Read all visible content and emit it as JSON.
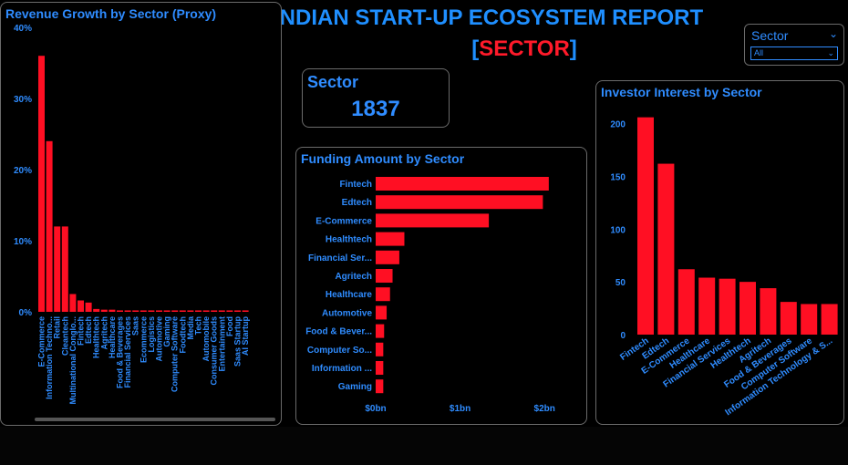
{
  "header": {
    "title": "INDIAN START-UP ECOSYSTEM REPORT",
    "subtitle_open": "[",
    "subtitle_text": "SECTOR",
    "subtitle_close": "]"
  },
  "kpi": {
    "label": "Sector",
    "value": "1837"
  },
  "slicer": {
    "label": "Sector",
    "selected": "All"
  },
  "colors": {
    "bar": "#ff0f23",
    "text": "#2f8cff",
    "border": "#6b6b6b",
    "background": "#000000"
  },
  "chart_data": [
    {
      "type": "bar",
      "title": "Revenue Growth by Sector (Proxy)",
      "ylabel": "",
      "ylim": [
        0,
        40
      ],
      "yticks": [
        "0%",
        "10%",
        "20%",
        "30%",
        "40%"
      ],
      "categories": [
        "E-Commerce",
        "Information Techno...",
        "Retail",
        "Cleantech",
        "Multinational Conglo...",
        "Fintech",
        "Edtech",
        "Healthtech",
        "Agritech",
        "Healthcare",
        "Food & Beverages",
        "Financial Services",
        "Saas",
        "Ecommerce",
        "Logistics",
        "Automotive",
        "Gaming",
        "Computer Software",
        "Foodtech",
        "Media",
        "Tech",
        "Automobile",
        "Consumer Goods",
        "Entertainment",
        "Food",
        "Saas Startup",
        "AI Startup"
      ],
      "values": [
        36,
        24,
        12,
        12,
        2.5,
        1.6,
        1.3,
        0.4,
        0.3,
        0.3,
        0.2,
        0.2,
        0.2,
        0.2,
        0.2,
        0.2,
        0.2,
        0.2,
        0.2,
        0.2,
        0.2,
        0.2,
        0.2,
        0.2,
        0.2,
        0.2,
        0.2
      ],
      "unit": "%"
    },
    {
      "type": "bar",
      "orientation": "horizontal",
      "title": "Funding Amount by Sector",
      "categories": [
        "Fintech",
        "Edtech",
        "E-Commerce",
        "Healthtech",
        "Financial Ser...",
        "Agritech",
        "Healthcare",
        "Automotive",
        "Food & Bever...",
        "Computer So...",
        "Information ...",
        "Gaming"
      ],
      "values": [
        2.05,
        1.98,
        1.34,
        0.34,
        0.28,
        0.2,
        0.17,
        0.13,
        0.1,
        0.09,
        0.09,
        0.09
      ],
      "xticks": [
        "$0bn",
        "$1bn",
        "$2bn"
      ],
      "xlim": [
        0,
        2.3
      ],
      "unit": "bn"
    },
    {
      "type": "bar",
      "title": "Investor Interest by Sector",
      "categories": [
        "Fintech",
        "Edtech",
        "E-Commerce",
        "Healthcare",
        "Financial Services",
        "Healthtech",
        "Agritech",
        "Food & Beverages",
        "Computer Software",
        "Information Technology & S..."
      ],
      "values": [
        206,
        162,
        62,
        54,
        53,
        50,
        44,
        31,
        29,
        29
      ],
      "yticks": [
        "0",
        "50",
        "100",
        "150",
        "200"
      ],
      "ylim": [
        0,
        220
      ]
    }
  ]
}
